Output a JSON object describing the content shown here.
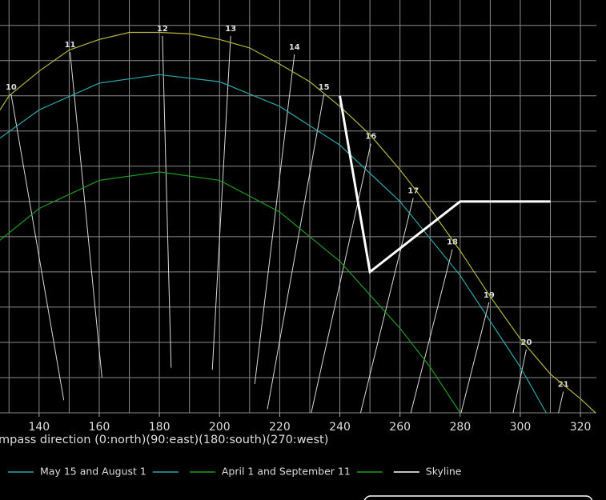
{
  "chart_data": {
    "type": "line",
    "xlabel": "mpass direction (0:north)(90:east)(180:south)(270:west)",
    "xlim": [
      127,
      325.3
    ],
    "ylim": [
      0,
      58.6
    ],
    "xticks": [
      140,
      160,
      180,
      200,
      220,
      240,
      260,
      280,
      300,
      320
    ],
    "xgrid": [
      130,
      140,
      150,
      160,
      170,
      180,
      190,
      200,
      210,
      220,
      230,
      240,
      250,
      260,
      270,
      280,
      290,
      300,
      310,
      320
    ],
    "ygrid": [
      0,
      5,
      10,
      15,
      20,
      25,
      30,
      35,
      40,
      45,
      50,
      55
    ],
    "grid": true,
    "series": [
      {
        "color": "#b8b43c",
        "x": [
          127,
          130,
          140,
          150,
          160,
          170,
          180,
          190,
          200,
          210,
          220,
          230,
          240,
          250,
          260,
          270,
          280,
          290,
          300,
          310,
          320,
          325
        ],
        "values": [
          43,
          45,
          48.5,
          51.5,
          53,
          54,
          54,
          53.8,
          53,
          51.8,
          49.5,
          47,
          43.5,
          39.5,
          34.5,
          29,
          23,
          16.5,
          10.5,
          5.5,
          2,
          0
        ]
      },
      {
        "name": "May 15 and August 1",
        "color": "#2aa6ab",
        "x": [
          127,
          140,
          160,
          180,
          200,
          220,
          240,
          260,
          280,
          290,
          300,
          308.6
        ],
        "values": [
          39,
          43,
          46.8,
          48,
          47,
          43.5,
          38,
          30,
          19.5,
          13,
          6.5,
          0
        ]
      },
      {
        "name": "April 1 and September 11",
        "color": "#1f9a1f",
        "x": [
          127,
          140,
          160,
          180,
          200,
          220,
          240,
          260,
          270,
          280
        ],
        "values": [
          24.5,
          29,
          33,
          34.2,
          33,
          28.5,
          21.5,
          12,
          6.5,
          0
        ]
      },
      {
        "name": "Skyline",
        "color": "#ffffff",
        "width": 3,
        "x": [
          240,
          250,
          280,
          310
        ],
        "values": [
          45,
          20,
          30,
          30
        ]
      }
    ],
    "hour_lines": [
      {
        "label": "10",
        "x": [
          130.7,
          148.2
        ],
        "values": [
          45.2,
          1.8
        ]
      },
      {
        "label": "11",
        "x": [
          150.3,
          160.9
        ],
        "values": [
          51.2,
          5
        ]
      },
      {
        "label": "12",
        "x": [
          181,
          183.9
        ],
        "values": [
          53.5,
          6.4
        ]
      },
      {
        "label": "13",
        "x": [
          203.7,
          197.6
        ],
        "values": [
          53.5,
          6.1
        ]
      },
      {
        "label": "14",
        "x": [
          224.9,
          211.7
        ],
        "values": [
          50.9,
          4.1
        ]
      },
      {
        "label": "15",
        "x": [
          234.7,
          215.9
        ],
        "values": [
          45.2,
          0.5
        ]
      },
      {
        "label": "16",
        "x": [
          250.3,
          230.5
        ],
        "values": [
          38.2,
          0
        ]
      },
      {
        "label": "17",
        "x": [
          264.4,
          246.9
        ],
        "values": [
          30.5,
          0
        ]
      },
      {
        "label": "18",
        "x": [
          277.4,
          263.6
        ],
        "values": [
          23.2,
          0
        ]
      },
      {
        "label": "19",
        "x": [
          289.6,
          280.3
        ],
        "values": [
          15.7,
          0
        ]
      },
      {
        "label": "20",
        "x": [
          302,
          297.6
        ],
        "values": [
          9,
          0
        ]
      },
      {
        "label": "21",
        "x": [
          314.3,
          312.7
        ],
        "values": [
          3,
          0
        ]
      }
    ]
  }
}
